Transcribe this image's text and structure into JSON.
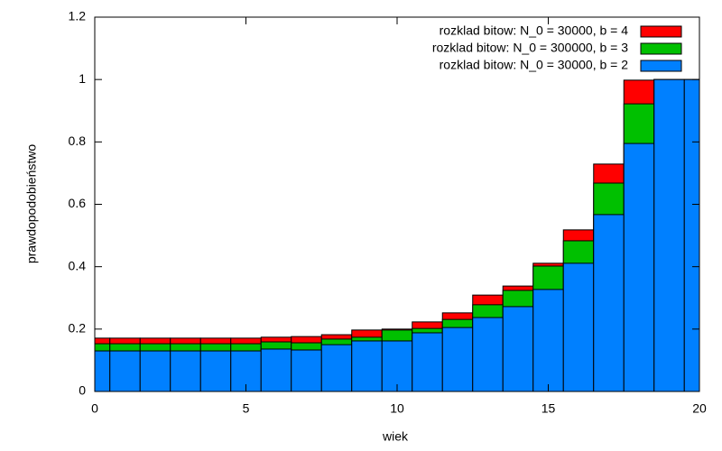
{
  "chart_data": {
    "type": "bar",
    "x_label": "wiek",
    "y_label": "prawdopodobieństwo",
    "x": [
      0,
      1,
      2,
      3,
      4,
      5,
      6,
      7,
      8,
      9,
      10,
      11,
      12,
      13,
      14,
      15,
      16,
      17,
      18,
      19,
      20
    ],
    "series": [
      {
        "name": "rozklad bitow: N_0 = 30000, b = 4",
        "color": "#ff0000",
        "values": [
          0.171,
          0.171,
          0.171,
          0.171,
          0.171,
          0.171,
          0.174,
          0.176,
          0.182,
          0.197,
          0.2,
          0.223,
          0.252,
          0.309,
          0.338,
          0.411,
          0.518,
          0.729,
          0.998,
          1.0,
          1.0
        ]
      },
      {
        "name": "rozklad bitow: N_0 = 300000, b = 3",
        "color": "#00c000",
        "values": [
          0.153,
          0.153,
          0.153,
          0.153,
          0.153,
          0.153,
          0.159,
          0.156,
          0.168,
          0.174,
          0.197,
          0.202,
          0.231,
          0.278,
          0.324,
          0.402,
          0.483,
          0.668,
          0.922,
          1.0,
          1.0
        ]
      },
      {
        "name": "rozklad bitow: N_0 = 30000, b = 2",
        "color": "#0080ff",
        "values": [
          0.13,
          0.13,
          0.13,
          0.13,
          0.13,
          0.13,
          0.136,
          0.133,
          0.15,
          0.162,
          0.162,
          0.188,
          0.205,
          0.237,
          0.272,
          0.327,
          0.411,
          0.567,
          0.795,
          1.0,
          1.0
        ]
      }
    ],
    "xlim": [
      0,
      20
    ],
    "xticks": [
      0,
      5,
      10,
      15,
      20
    ],
    "ylim": [
      0,
      1.2
    ],
    "yticks": [
      0,
      0.2,
      0.4,
      0.6,
      0.8,
      1,
      1.2
    ],
    "grid": false,
    "legend": "top-right"
  }
}
